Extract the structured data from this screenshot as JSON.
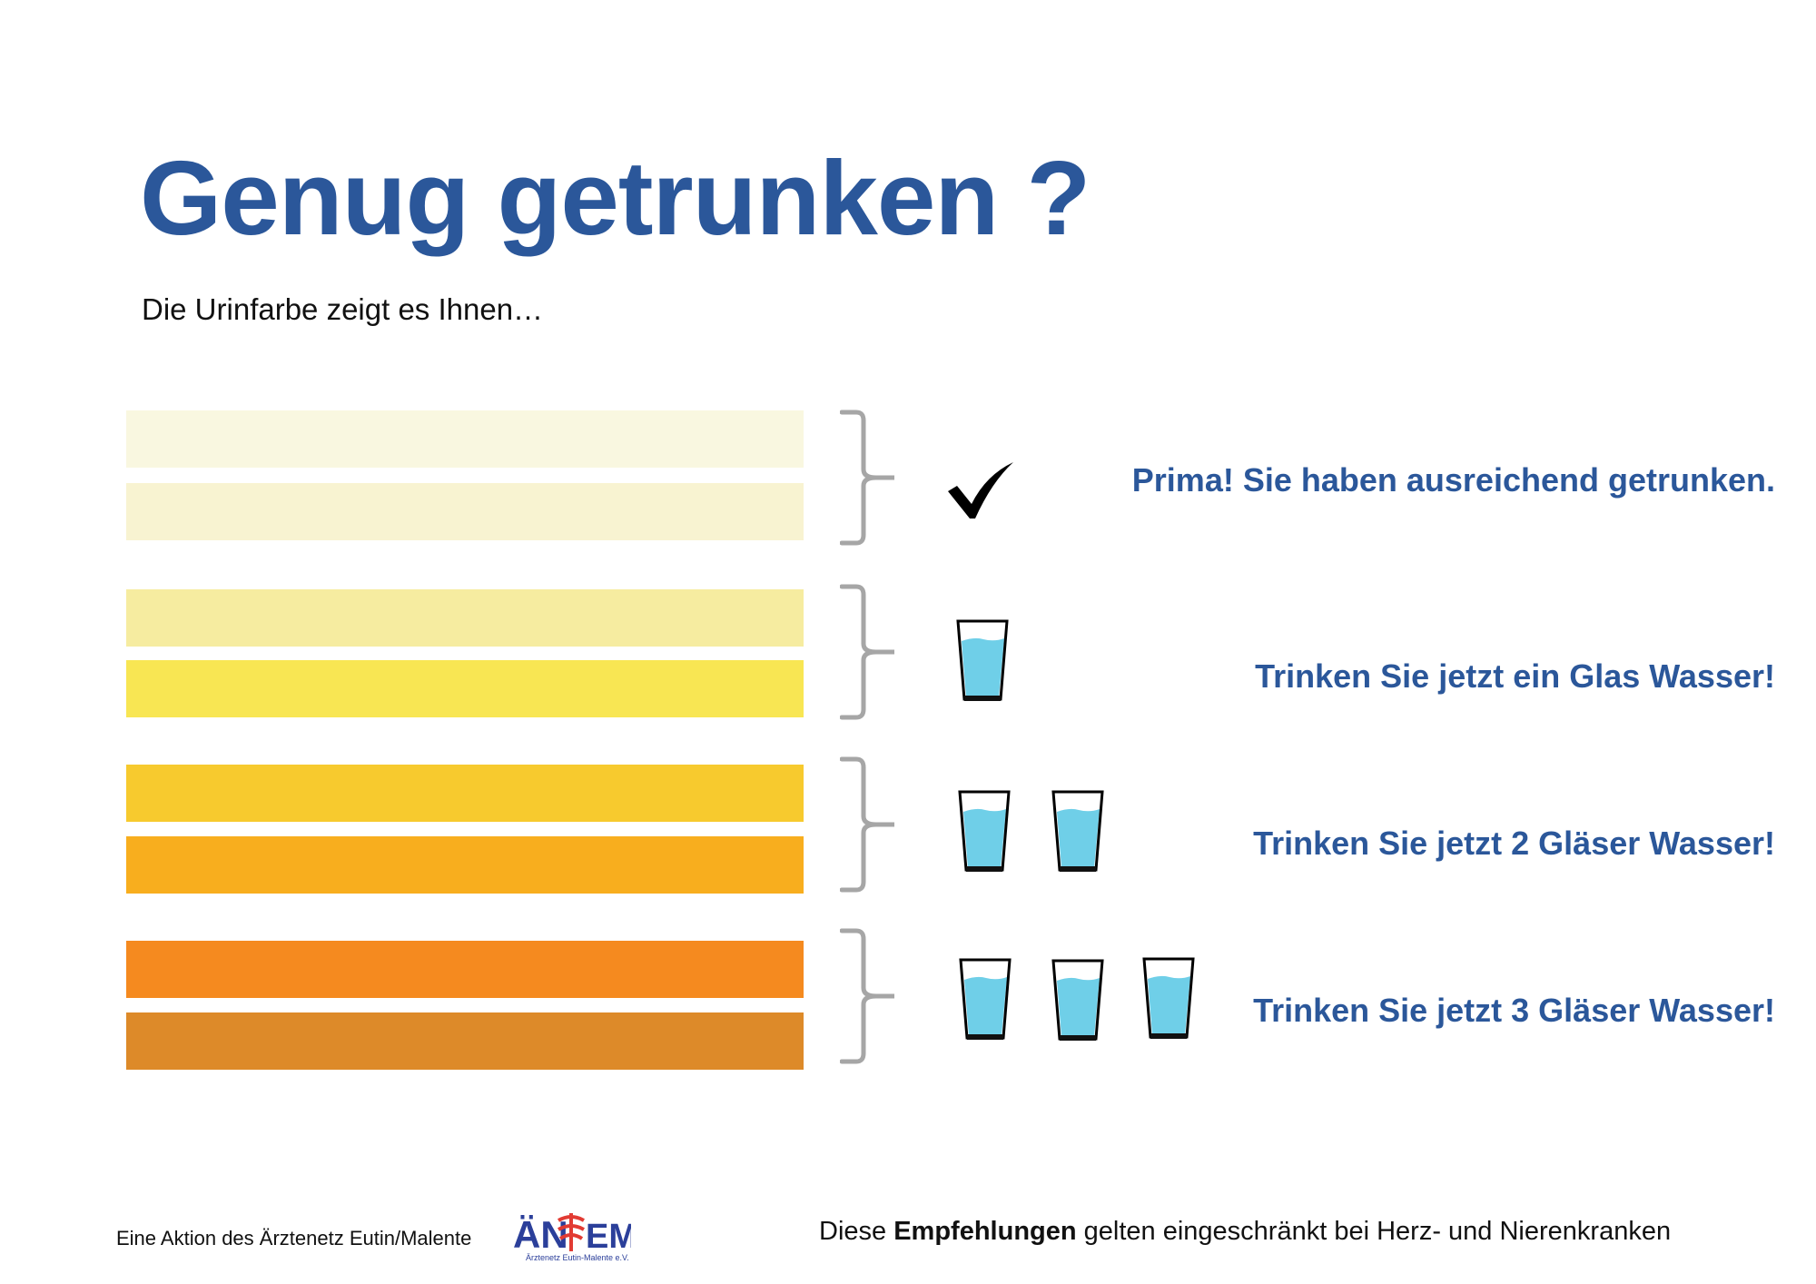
{
  "header": {
    "title": "Genug getrunken ?",
    "subtitle": "Die Urinfarbe zeigt es Ihnen…"
  },
  "scale": {
    "bar_colors": [
      "#f9f7e0",
      "#f8f3d1",
      "#f6eca0",
      "#f8e653",
      "#f7ca2e",
      "#f8ae1e",
      "#f58a1f",
      "#dd8a29"
    ]
  },
  "groups": [
    {
      "icon": "checkmark-icon",
      "glasses": 0,
      "message": "Prima! Sie haben ausreichend getrunken."
    },
    {
      "icon": "water-glass-icon",
      "glasses": 1,
      "message": "Trinken Sie jetzt ein Glas Wasser!"
    },
    {
      "icon": "water-glass-icon",
      "glasses": 2,
      "message": "Trinken Sie jetzt 2 Gläser Wasser!"
    },
    {
      "icon": "water-glass-icon",
      "glasses": 3,
      "message": "Trinken Sie jetzt 3 Gläser Wasser!"
    }
  ],
  "footer": {
    "left_text": "Eine Aktion des Ärztenetz Eutin/Malente",
    "logo": {
      "mark_left": "ÄN",
      "mark_right": "EM",
      "tagline": "Ärztenetz Eutin-Malente e.V."
    },
    "note_prefix": "Diese ",
    "note_bold": "Empfehlungen",
    "note_suffix": " gelten eingeschränkt bei Herz- und Nierenkranken"
  },
  "colors": {
    "brand_blue": "#2b579a",
    "bracket_gray": "#a6a6a6",
    "water": "#6fcfe8",
    "logo_red": "#e23b33"
  }
}
